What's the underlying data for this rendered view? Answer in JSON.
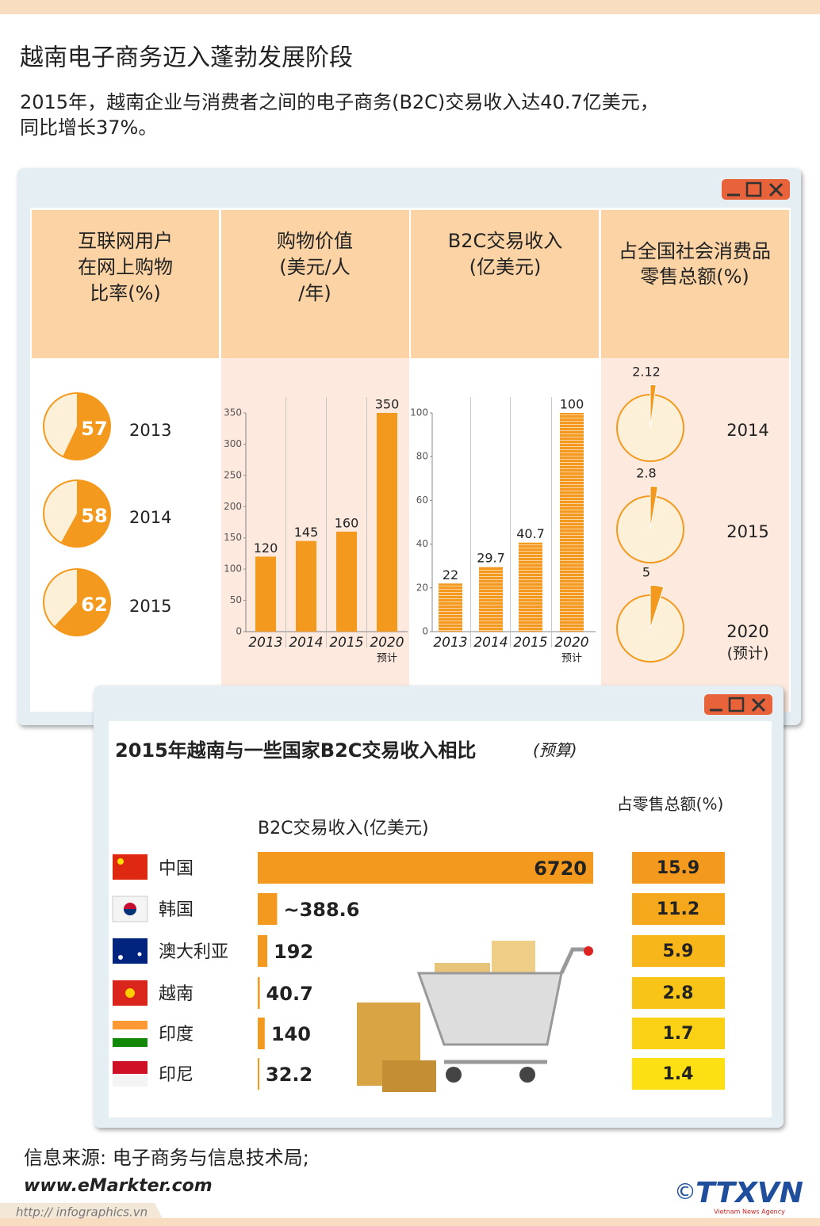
{
  "header": {
    "title": "越南电子商务迈入蓬勃发展阶段",
    "subtitle": [
      "2015年，越南企业与消费者之间的电子商务(B2C)交易收入达40.7亿美元，",
      "同比增长37%。"
    ]
  },
  "chart_data": [
    {
      "type": "pie",
      "title": [
        "互联网用户",
        "在网上购物",
        "比率(%)"
      ],
      "categories": [
        "2013",
        "2014",
        "2015"
      ],
      "values": [
        57,
        58,
        62
      ],
      "color": "#f39a1e",
      "rest_color": "#fdf0d8"
    },
    {
      "type": "bar",
      "title": [
        "购物价值",
        "(美元/人",
        "/年)"
      ],
      "categories": [
        "2013",
        "2014",
        "2015",
        "2020"
      ],
      "category_notes": [
        null,
        null,
        null,
        "预计"
      ],
      "values": [
        120,
        145,
        160,
        350
      ],
      "color": "#f39a1e",
      "ylim": [
        0,
        350
      ],
      "yticks": [
        0,
        50,
        100,
        150,
        200,
        250,
        300,
        350
      ]
    },
    {
      "type": "bar",
      "title": [
        "B2C交易收入",
        "(亿美元)"
      ],
      "categories": [
        "2013",
        "2014",
        "2015",
        "2020"
      ],
      "category_notes": [
        null,
        null,
        null,
        "预计"
      ],
      "values": [
        22,
        29.7,
        40.7,
        100
      ],
      "color": "#f39a1e",
      "striped": true,
      "ylim": [
        0,
        100
      ],
      "yticks": [
        0,
        20,
        40,
        60,
        80,
        100
      ]
    },
    {
      "type": "pie",
      "title": [
        "占全国社会消费品",
        "零售总额(%)"
      ],
      "categories": [
        "2014",
        "2015",
        "2020"
      ],
      "category_notes": [
        null,
        null,
        "(预计)"
      ],
      "values": [
        2.12,
        2.8,
        5
      ],
      "color": "#f39a1e",
      "rest_color": "#fdf0d8",
      "exploded": true
    },
    {
      "type": "hbar",
      "title": "2015年越南与一些国家B2C交易收入相比",
      "subtitle": "(预算)",
      "categories": [
        "中国",
        "韩国",
        "澳大利亚",
        "越南",
        "印度",
        "印尼"
      ],
      "series": [
        {
          "name": "B2C交易收入(亿美元)",
          "color": "#f39a1e",
          "values": [
            6720,
            388.6,
            192,
            40.7,
            140,
            32.2
          ],
          "value_labels": [
            "6720",
            "~388.6",
            "192",
            "40.7",
            "140",
            "32.2"
          ]
        },
        {
          "name": "占零售总额(%)",
          "colors": [
            "#f39a1e",
            "#f5a81c",
            "#f7b61a",
            "#f9c418",
            "#fbd116",
            "#fde014"
          ],
          "values": [
            15.9,
            11.2,
            5.9,
            2.8,
            1.7,
            1.4
          ]
        }
      ]
    }
  ],
  "footer": {
    "source": "信息来源: 电子商务与信息技术局;",
    "website": "www.eMarkter.com",
    "url": "http:// infographics.vn",
    "copyright": "©",
    "logo": "TTXVN",
    "agency": "Vietnam News Agency"
  }
}
